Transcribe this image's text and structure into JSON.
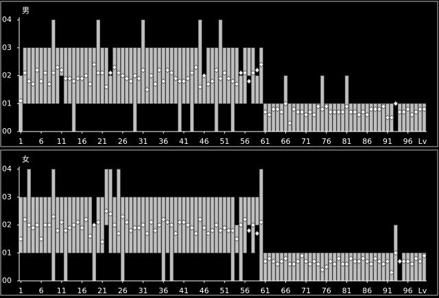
{
  "chart_data": [
    {
      "type": "range-bar-dot",
      "title": "男",
      "x_label": "Lv",
      "bar_color": "#c0c0c0",
      "point_color": "#ffffff",
      "x": [
        1,
        2,
        3,
        4,
        5,
        6,
        7,
        8,
        9,
        10,
        11,
        12,
        13,
        14,
        15,
        16,
        17,
        18,
        19,
        20,
        21,
        22,
        23,
        24,
        25,
        26,
        27,
        28,
        29,
        30,
        31,
        32,
        33,
        34,
        35,
        36,
        37,
        38,
        39,
        40,
        41,
        42,
        43,
        44,
        45,
        46,
        47,
        48,
        49,
        50,
        51,
        52,
        53,
        54,
        55,
        56,
        57,
        58,
        59,
        60,
        61,
        62,
        63,
        64,
        65,
        66,
        67,
        68,
        69,
        70,
        71,
        72,
        73,
        74,
        75,
        76,
        77,
        78,
        79,
        80,
        81,
        82,
        83,
        84,
        85,
        86,
        87,
        88,
        89,
        90,
        91,
        92,
        93,
        94,
        95,
        96,
        97,
        98,
        99,
        100
      ],
      "lows": [
        0,
        1,
        1,
        1,
        1,
        1,
        1,
        1,
        1,
        1,
        2,
        1,
        1,
        0,
        1,
        1,
        1,
        1,
        1,
        1,
        1,
        1,
        1,
        1,
        1,
        1,
        1,
        1,
        0,
        1,
        1,
        1,
        1,
        1,
        1,
        1,
        1,
        1,
        1,
        0,
        1,
        1,
        0,
        1,
        1,
        1,
        1,
        1,
        0,
        1,
        1,
        1,
        0,
        1,
        1,
        1,
        2,
        1,
        1,
        1,
        0,
        0,
        0,
        0,
        0,
        0,
        0,
        0,
        0,
        0,
        0,
        0,
        0,
        0,
        0,
        0,
        0,
        0,
        0,
        0,
        0,
        0,
        0,
        0,
        0,
        0,
        0,
        0,
        0,
        0,
        0,
        0,
        null,
        0,
        0,
        0,
        0,
        0,
        0,
        0
      ],
      "highs": [
        2,
        3,
        3,
        3,
        3,
        3,
        3,
        3,
        4,
        3,
        3,
        3,
        3,
        3,
        3,
        3,
        3,
        3,
        3,
        4,
        3,
        3,
        2,
        3,
        3,
        3,
        3,
        3,
        3,
        3,
        4,
        3,
        3,
        3,
        3,
        3,
        3,
        3,
        3,
        3,
        3,
        3,
        3,
        3,
        4,
        2,
        3,
        3,
        3,
        4,
        3,
        3,
        3,
        3,
        2,
        3,
        3,
        3,
        2,
        3,
        1,
        1,
        1,
        1,
        1,
        2,
        1,
        1,
        1,
        1,
        1,
        1,
        1,
        1,
        2,
        1,
        1,
        1,
        1,
        1,
        2,
        1,
        1,
        1,
        1,
        1,
        1,
        1,
        1,
        1,
        1,
        1,
        null,
        1,
        1,
        1,
        1,
        1,
        1,
        1
      ],
      "values": [
        1.1,
        2.1,
        1.8,
        1.7,
        2.2,
        1.8,
        2.1,
        1.7,
        2.1,
        2.3,
        2.2,
        1.9,
        1.9,
        1.8,
        1.9,
        1.9,
        2.0,
        1.7,
        2.4,
        2.1,
        2.1,
        1.6,
        2.1,
        2.3,
        2.1,
        2.0,
        1.9,
        1.8,
        2.0,
        1.9,
        2.2,
        1.5,
        2.0,
        1.7,
        2.2,
        1.8,
        2.2,
        2.1,
        1.9,
        1.8,
        1.8,
        1.9,
        2.1,
        2.3,
        1.6,
        2.0,
        1.7,
        1.8,
        2.2,
        1.9,
        2.1,
        1.9,
        1.8,
        1.7,
        2.1,
        2.1,
        1.8,
        2.1,
        2.2,
        2.4,
        0.7,
        0.6,
        0.8,
        0.8,
        0.7,
        1.0,
        0.3,
        0.8,
        0.7,
        0.7,
        0.6,
        0.7,
        0.6,
        0.9,
        0.8,
        0.9,
        0.7,
        0.7,
        0.7,
        0.7,
        0.9,
        0.7,
        0.7,
        0.6,
        0.7,
        0.6,
        0.8,
        0.8,
        0.8,
        0.9,
        0.5,
        0.5,
        1.0,
        0.7,
        0.7,
        0.8,
        0.6,
        0.7,
        0.8,
        0.8
      ],
      "xlim": [
        0.6,
        100.6
      ],
      "ylim": [
        0,
        4
      ],
      "xticks": [
        1,
        6,
        11,
        16,
        21,
        26,
        31,
        36,
        41,
        46,
        51,
        56,
        61,
        66,
        71,
        76,
        81,
        86,
        91,
        96
      ],
      "yticks": [
        {
          "value": 0,
          "label": "00"
        },
        {
          "value": 1,
          "label": "01"
        },
        {
          "value": 2,
          "label": "02"
        },
        {
          "value": 3,
          "label": "03"
        },
        {
          "value": 4,
          "label": "04"
        }
      ]
    },
    {
      "type": "range-bar-dot",
      "title": "女",
      "x_label": "Lv",
      "bar_color": "#c0c0c0",
      "point_color": "#ffffff",
      "x": [
        1,
        2,
        3,
        4,
        5,
        6,
        7,
        8,
        9,
        10,
        11,
        12,
        13,
        14,
        15,
        16,
        17,
        18,
        19,
        20,
        21,
        22,
        23,
        24,
        25,
        26,
        27,
        28,
        29,
        30,
        31,
        32,
        33,
        34,
        35,
        36,
        37,
        38,
        39,
        40,
        41,
        42,
        43,
        44,
        45,
        46,
        47,
        48,
        49,
        50,
        51,
        52,
        53,
        54,
        55,
        56,
        57,
        58,
        59,
        60,
        61,
        62,
        63,
        64,
        65,
        66,
        67,
        68,
        69,
        70,
        71,
        72,
        73,
        74,
        75,
        76,
        77,
        78,
        79,
        80,
        81,
        82,
        83,
        84,
        85,
        86,
        87,
        88,
        89,
        90,
        91,
        92,
        93,
        94,
        95,
        96,
        97,
        98,
        99,
        100
      ],
      "lows": [
        1,
        1,
        1,
        1,
        1,
        1,
        1,
        1,
        0,
        1,
        1,
        0,
        1,
        1,
        1,
        1,
        1,
        1,
        0,
        1,
        1,
        2,
        1,
        1,
        1,
        0,
        1,
        1,
        1,
        1,
        1,
        1,
        1,
        1,
        1,
        0,
        1,
        0,
        1,
        1,
        1,
        1,
        1,
        1,
        1,
        1,
        1,
        1,
        1,
        1,
        1,
        1,
        0,
        1,
        0,
        1,
        2,
        1,
        2,
        0,
        0,
        0,
        0,
        0,
        0,
        0,
        0,
        0,
        0,
        0,
        0,
        0,
        0,
        0,
        0,
        0,
        0,
        0,
        0,
        0,
        0,
        0,
        0,
        0,
        0,
        0,
        0,
        0,
        0,
        0,
        0,
        0,
        0,
        null,
        0,
        0,
        0,
        0,
        0,
        0
      ],
      "highs": [
        3,
        3,
        4,
        3,
        3,
        3,
        3,
        3,
        4,
        3,
        3,
        3,
        3,
        3,
        3,
        3,
        3,
        3,
        2,
        3,
        3,
        4,
        4,
        3,
        4,
        3,
        3,
        3,
        3,
        3,
        3,
        3,
        3,
        3,
        3,
        3,
        3,
        3,
        3,
        3,
        3,
        3,
        3,
        3,
        3,
        3,
        3,
        3,
        3,
        3,
        3,
        3,
        3,
        2,
        3,
        3,
        3,
        3,
        3,
        4,
        1,
        1,
        1,
        1,
        1,
        1,
        1,
        1,
        1,
        1,
        1,
        1,
        1,
        1,
        1,
        1,
        1,
        1,
        1,
        1,
        1,
        1,
        1,
        1,
        1,
        1,
        1,
        1,
        1,
        1,
        1,
        1,
        2,
        null,
        1,
        1,
        1,
        1,
        1,
        1
      ],
      "values": [
        1.5,
        2.2,
        2.0,
        1.9,
        2.0,
        1.5,
        2.0,
        2.0,
        2.3,
        1.8,
        2.1,
        1.8,
        1.9,
        2.0,
        2.1,
        1.9,
        2.2,
        1.6,
        2.0,
        2.1,
        1.4,
        2.5,
        2.4,
        2.0,
        1.7,
        2.3,
        2.1,
        1.8,
        1.9,
        1.9,
        2.0,
        1.7,
        2.1,
        1.8,
        2.0,
        2.2,
        2.1,
        2.0,
        1.7,
        2.1,
        2.1,
        2.0,
        1.9,
        1.7,
        2.2,
        1.9,
        1.7,
        1.8,
        2.0,
        1.8,
        1.9,
        1.8,
        1.8,
        1.5,
        2.0,
        2.2,
        1.8,
        2.0,
        1.7,
        2.1,
        0.7,
        0.8,
        0.7,
        0.6,
        0.7,
        0.8,
        0.6,
        0.6,
        0.7,
        0.9,
        0.7,
        0.6,
        0.7,
        0.6,
        0.4,
        0.5,
        0.7,
        0.6,
        0.8,
        0.6,
        0.6,
        0.8,
        0.7,
        0.7,
        0.8,
        0.7,
        0.6,
        0.8,
        0.7,
        0.6,
        0.7,
        0.3,
        1.0,
        0.7,
        0.7,
        0.7,
        0.6,
        0.8,
        0.7,
        0.9
      ],
      "xlim": [
        0.6,
        100.6
      ],
      "ylim": [
        0,
        4
      ],
      "xticks": [
        1,
        6,
        11,
        16,
        21,
        26,
        31,
        36,
        41,
        46,
        51,
        56,
        61,
        66,
        71,
        76,
        81,
        86,
        91,
        96
      ],
      "yticks": [
        {
          "value": 0,
          "label": "00"
        },
        {
          "value": 1,
          "label": "01"
        },
        {
          "value": 2,
          "label": "02"
        },
        {
          "value": 3,
          "label": "03"
        },
        {
          "value": 4,
          "label": "04"
        }
      ]
    }
  ]
}
